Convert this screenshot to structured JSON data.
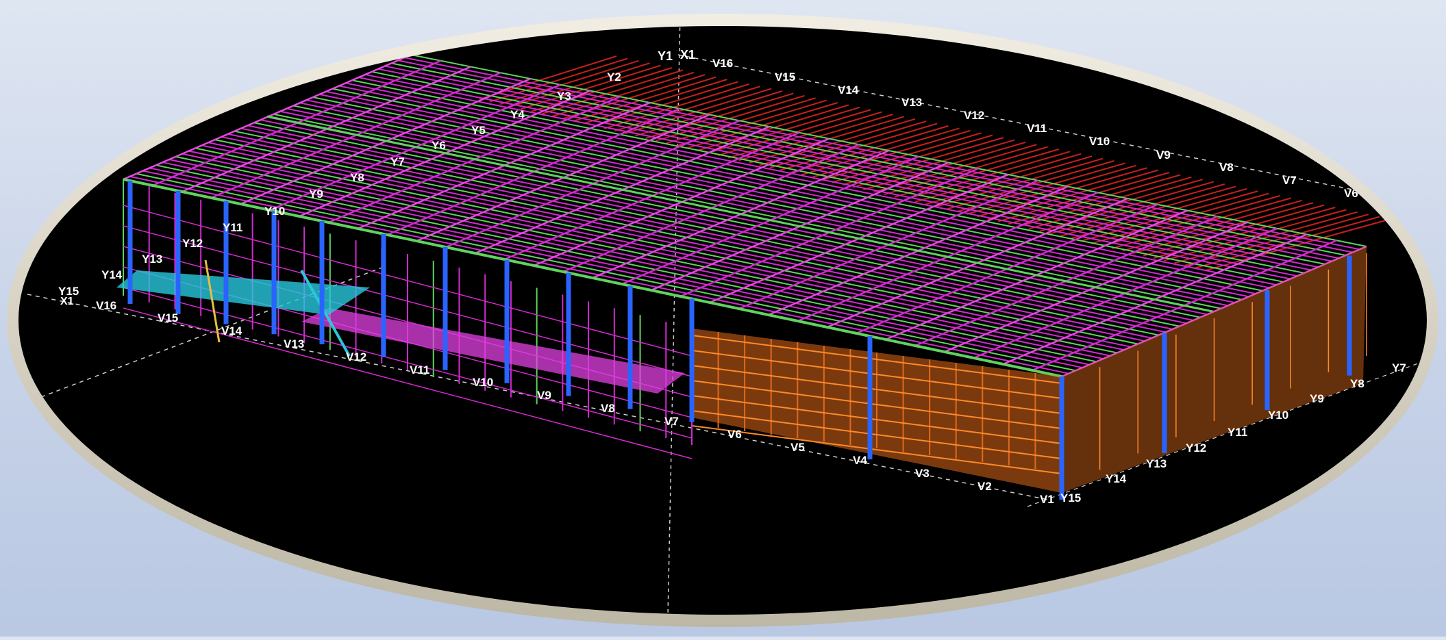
{
  "colors": {
    "frame": "#d9d4c4",
    "viewport": "#000000",
    "roof_red": "#c8201c",
    "purlin_magenta": "#d22ad0",
    "purlin_green": "#5fd35f",
    "column_blue": "#2a64ff",
    "wall_orange": "#e06a1a",
    "floor_cyan": "#28c8dc",
    "brace_yellow": "#e8c040",
    "label": "#ffffff",
    "gridline": "#cfcfcf"
  },
  "grid_labels": {
    "top_corner": [
      "Y1",
      "X1"
    ],
    "back_v": [
      "V16",
      "V15",
      "V14",
      "V13",
      "V12",
      "V11",
      "V10",
      "V9",
      "V8",
      "V7",
      "V6"
    ],
    "left_y": [
      "Y2",
      "Y3",
      "Y4",
      "Y5",
      "Y6",
      "Y7",
      "Y8",
      "Y9",
      "Y10",
      "Y11",
      "Y12",
      "Y13",
      "Y14",
      "Y15"
    ],
    "left_corner": [
      "X1"
    ],
    "front_v": [
      "V16",
      "V15",
      "V14",
      "V13",
      "V12",
      "V11",
      "V10",
      "V9",
      "V8",
      "V7",
      "V6",
      "V5",
      "V4",
      "V3",
      "V2",
      "V1"
    ],
    "right_y": [
      "Y15",
      "Y14",
      "Y13",
      "Y12",
      "Y11",
      "Y10",
      "Y9",
      "Y8",
      "Y7"
    ]
  }
}
